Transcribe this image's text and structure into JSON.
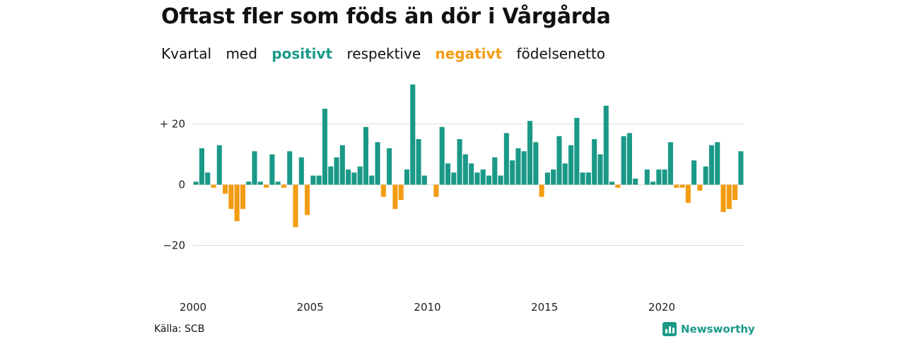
{
  "title": "Oftast fler som föds än dör i Vårgårda",
  "subtitle": {
    "w1": "Kvartal",
    "w2": "med",
    "pos": "positivt",
    "w3": "respektive",
    "neg": "negativt",
    "w4": "födelsenetto"
  },
  "colors": {
    "positive": "#1a9988",
    "negative": "#f39c12",
    "grid": "#dddddd"
  },
  "source": "Källa: SCB",
  "brand": "Newsworthy",
  "chart_data": {
    "type": "bar",
    "start_year": 2000,
    "periods_per_year": 4,
    "x_ticks": [
      "2000",
      "2005",
      "2010",
      "2015",
      "2020"
    ],
    "y_ticks": [
      {
        "value": 20,
        "label": "+ 20"
      },
      {
        "value": 0,
        "label": "0"
      },
      {
        "value": -20,
        "label": "−20"
      }
    ],
    "ylim": [
      -30,
      35
    ],
    "values": [
      1,
      12,
      4,
      -1,
      13,
      -3,
      -8,
      -12,
      -8,
      1,
      11,
      1,
      -1,
      10,
      1,
      -1,
      11,
      -14,
      9,
      -10,
      3,
      3,
      25,
      6,
      9,
      13,
      5,
      4,
      6,
      19,
      3,
      14,
      -4,
      12,
      -8,
      -5,
      5,
      33,
      15,
      3,
      0,
      -4,
      19,
      7,
      4,
      15,
      10,
      7,
      4,
      5,
      3,
      9,
      3,
      17,
      8,
      12,
      11,
      21,
      14,
      -4,
      4,
      5,
      16,
      7,
      13,
      22,
      4,
      4,
      15,
      10,
      26,
      1,
      -1,
      16,
      17,
      2,
      0,
      5,
      1,
      5,
      5,
      14,
      -1,
      -1,
      -6,
      8,
      -2,
      6,
      13,
      14,
      -9,
      -8,
      -5,
      11
    ]
  }
}
